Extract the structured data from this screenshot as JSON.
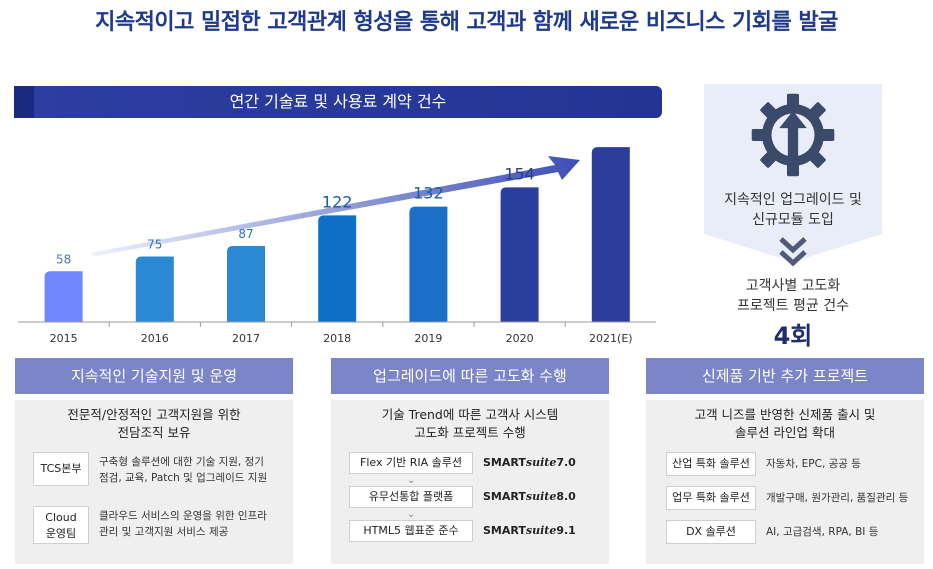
{
  "headline": "지속적이고 밀접한 고객관계 형성을 통해 고객과 함께 새로운 비즈니스 기회를 발굴",
  "chart_data": {
    "type": "bar",
    "title": "연간 기술료 및 사용료 계약 건수",
    "categories": [
      "2015",
      "2016",
      "2017",
      "2018",
      "2019",
      "2020",
      "2021(E)"
    ],
    "values": [
      58,
      75,
      87,
      122,
      132,
      154,
      200
    ],
    "data_labels": [
      "58",
      "75",
      "87",
      "122",
      "132",
      "154",
      ""
    ],
    "colors": [
      "#6f86ff",
      "#2a89d2",
      "#2a89d2",
      "#0e6fc7",
      "#1b6fc6",
      "#2a3f9d",
      "#2c3e9c"
    ],
    "label_colors": [
      "#4a78d0",
      "#2a73b8",
      "#2a73b8",
      "#1a5ca8",
      "#1a5ca8",
      "#2a3d8f",
      "#2a3d8f"
    ],
    "ylim": [
      0,
      220
    ]
  },
  "side": {
    "text1": [
      "지속적인 업그레이드 및",
      "신규모듈 도입"
    ],
    "text2": [
      "고객사별 고도화",
      "프로젝트 평균 건수"
    ],
    "big": "4회"
  },
  "col1": {
    "head": "지속적인 기술지원 및 운영",
    "desc": [
      "전문적/안정적인 고객지원을 위한",
      "전담조직 보유"
    ],
    "items": [
      {
        "label": "TCS본부",
        "text": [
          "구축형 솔루션에 대한 기술 지원, 정기",
          "점검, 교육, Patch 및 업그레이드 지원"
        ]
      },
      {
        "label": "Cloud\n운영팀",
        "text": [
          "클라우드 서비스의 운영을 위한 인프라",
          "관리 및 고객지원 서비스 제공"
        ]
      }
    ]
  },
  "col2": {
    "head": "업그레이드에 따른 고도화 수행",
    "desc": [
      "기술 Trend에 따른 고객사 시스템",
      "고도화 프로젝트 수행"
    ],
    "items": [
      {
        "label": "Flex 기반 RIA 솔루션",
        "brand": "SMART",
        "suite": "suite",
        "ver": "7.0"
      },
      {
        "label": "유무선통합 플랫폼",
        "brand": "SMART",
        "suite": "suite",
        "ver": "8.0"
      },
      {
        "label": "HTML5 웹표준 준수",
        "brand": "SMART",
        "suite": "suite",
        "ver": "9.1"
      }
    ]
  },
  "col3": {
    "head": "신제품 기반 추가 프로젝트",
    "desc": [
      "고객 니즈를 반영한 신제품 출시 및",
      "솔루션 라인업 확대"
    ],
    "items": [
      {
        "label": "산업 특화 솔루션",
        "text": "자동차, EPC, 공공 등"
      },
      {
        "label": "업무 특화 솔루션",
        "text": "개발구매, 원가관리, 품질관리 등"
      },
      {
        "label": "DX 솔루션",
        "text": "AI, 고급검색, RPA, BI 등"
      }
    ]
  }
}
